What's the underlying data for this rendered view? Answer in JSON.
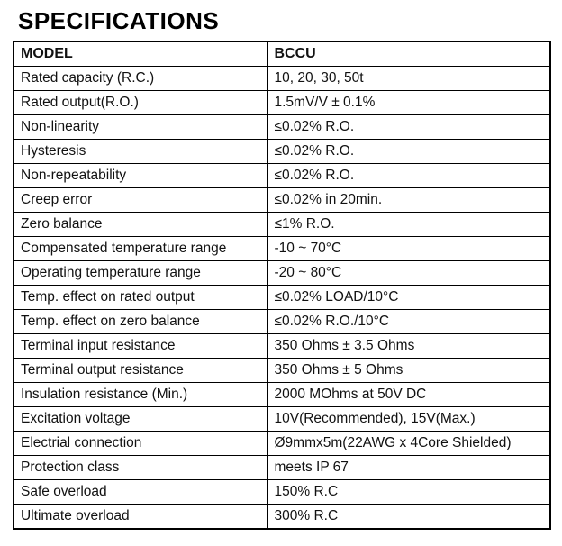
{
  "title": "SPECIFICATIONS",
  "table": {
    "header": {
      "model": "MODEL",
      "value": "BCCU"
    },
    "rows": [
      {
        "label": "Rated capacity (R.C.)",
        "value": "10, 20, 30, 50t"
      },
      {
        "label": "Rated output(R.O.)",
        "value": "1.5mV/V ± 0.1%"
      },
      {
        "label": "Non-linearity",
        "value": "≤0.02% R.O."
      },
      {
        "label": "Hysteresis",
        "value": "≤0.02% R.O."
      },
      {
        "label": "Non-repeatability",
        "value": "≤0.02% R.O."
      },
      {
        "label": "Creep error",
        "value": "≤0.02% in 20min."
      },
      {
        "label": "Zero balance",
        "value": "≤1% R.O."
      },
      {
        "label": "Compensated temperature range",
        "value": "-10 ~ 70°C"
      },
      {
        "label": "Operating temperature range",
        "value": "-20 ~ 80°C"
      },
      {
        "label": "Temp. effect on rated output",
        "value": "≤0.02% LOAD/10°C"
      },
      {
        "label": "Temp. effect on zero balance",
        "value": "≤0.02% R.O./10°C"
      },
      {
        "label": "Terminal input resistance",
        "value": "350 Ohms ± 3.5 Ohms"
      },
      {
        "label": "Terminal output resistance",
        "value": "350 Ohms ± 5 Ohms"
      },
      {
        "label": "Insulation resistance (Min.)",
        "value": "2000 MOhms at 50V DC"
      },
      {
        "label": "Excitation voltage",
        "value": "10V(Recommended), 15V(Max.)"
      },
      {
        "label": "Electrial connection",
        "value": "Ø9mmx5m(22AWG x 4Core Shielded)"
      },
      {
        "label": "Protection class",
        "value": "meets IP 67"
      },
      {
        "label": "Safe overload",
        "value": "150% R.C"
      },
      {
        "label": "Ultimate overload",
        "value": "300% R.C"
      }
    ]
  }
}
